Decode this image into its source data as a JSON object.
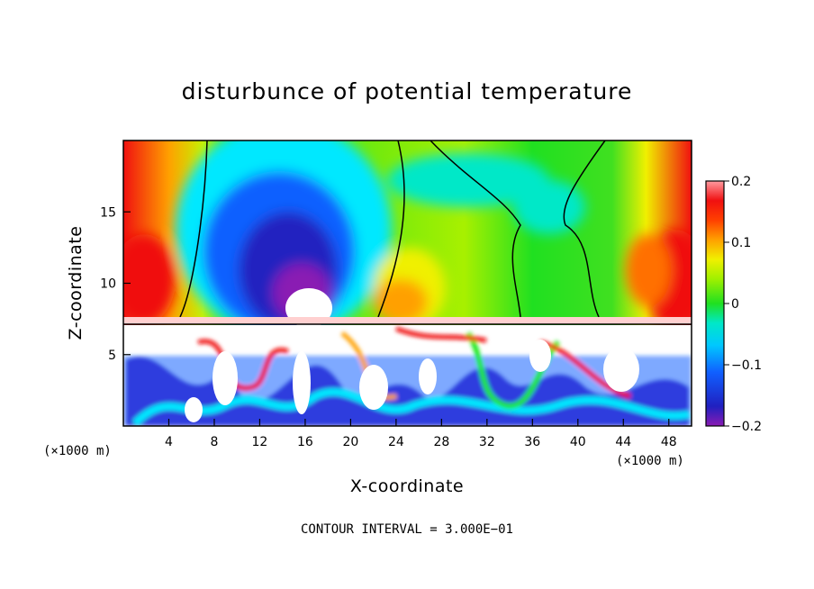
{
  "chart_data": {
    "type": "heatmap",
    "title": "disturbunce of potential temperature",
    "xlabel": "X-coordinate",
    "ylabel": "Z-coordinate",
    "x_unit": "(×1000 m)",
    "z_unit": "(×1000 m)",
    "xlim": [
      0,
      50
    ],
    "ylim": [
      0,
      20
    ],
    "x_ticks": [
      4,
      8,
      12,
      16,
      20,
      24,
      28,
      32,
      36,
      40,
      44,
      48
    ],
    "y_ticks": [
      5,
      10,
      15
    ],
    "colorbar": {
      "min": -0.2,
      "max": 0.2,
      "ticks": [
        0.2,
        0.1,
        0,
        -0.1,
        -0.2
      ],
      "tick_labels": [
        "0.2",
        "0.1",
        "0",
        "−0.1",
        "−0.2"
      ]
    },
    "contour_interval_label": "CONTOUR INTERVAL = 3.000E−01",
    "colors": {
      "magenta": "#8a1bb3",
      "blue": "#1010d0",
      "cyan": "#00e8ff",
      "green": "#1ee81e",
      "yellow": "#f0f000",
      "orange": "#ffa000",
      "red": "#f01010",
      "pink": "#ff9aa0"
    }
  }
}
